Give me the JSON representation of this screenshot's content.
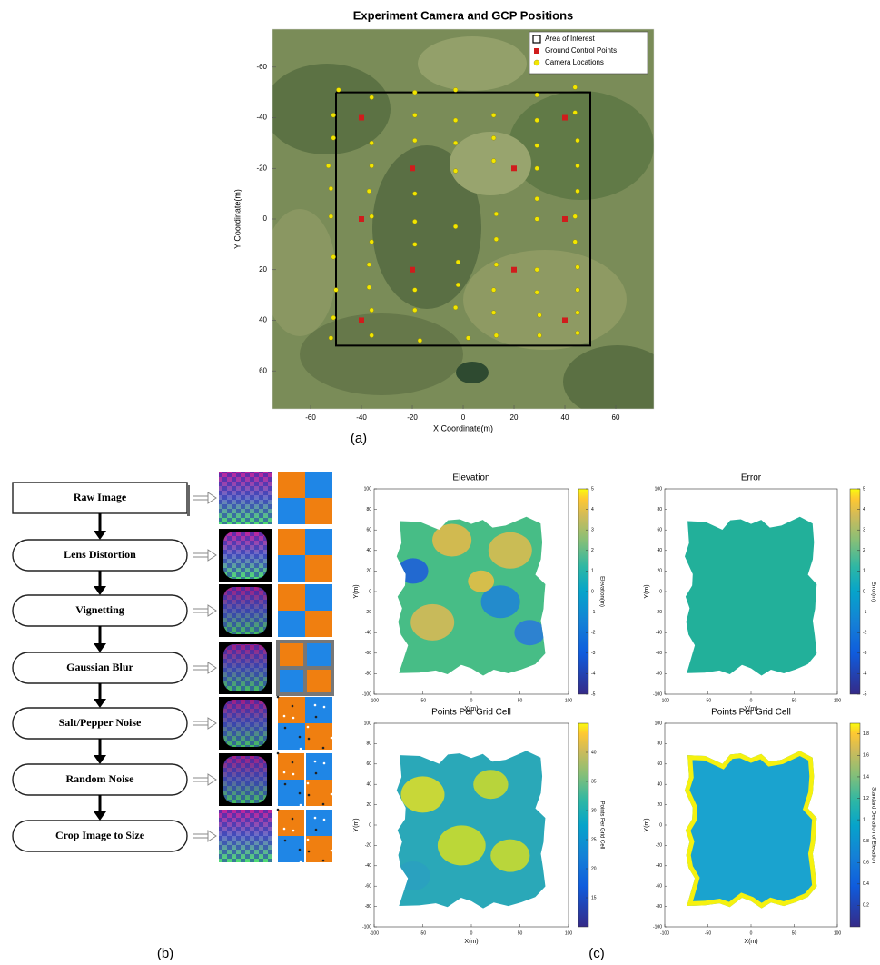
{
  "chart_data": [
    {
      "type": "scatter",
      "title": "Experiment Camera and GCP Positions",
      "xlabel": "X Coordinate(m)",
      "ylabel": "Y Coordinate(m)",
      "xlim": [
        -75,
        75
      ],
      "ylim": [
        -75,
        75
      ],
      "y_reversed": true,
      "xticks": [
        -60,
        -40,
        -20,
        0,
        20,
        40,
        60
      ],
      "yticks": [
        -60,
        -40,
        -20,
        0,
        20,
        40,
        60
      ],
      "legend": "upper right",
      "series": [
        {
          "name": "Area of Interest",
          "color": "#000000",
          "marker": "line",
          "x": [
            -50,
            50,
            50,
            -50,
            -50
          ],
          "y": [
            -50,
            -50,
            50,
            50,
            -50
          ]
        },
        {
          "name": "Ground Control Points",
          "color": "#d01c1c",
          "marker": "square",
          "x": [
            -40,
            40,
            -20,
            20,
            -40,
            40,
            -20,
            20,
            -40,
            40
          ],
          "y": [
            -40,
            -40,
            -20,
            -20,
            0,
            0,
            20,
            20,
            40,
            40
          ]
        },
        {
          "name": "Camera Locations",
          "color": "#f2e600",
          "marker": "circle",
          "x": [
            -49,
            -51,
            -51,
            -53,
            -52,
            -52,
            -51,
            -50,
            -51,
            -52,
            -36,
            -36,
            -36,
            -37,
            -36,
            -36,
            -37,
            -37,
            -36,
            -36,
            -19,
            -19,
            -19,
            -19,
            -19,
            -19,
            -19,
            -19,
            -17,
            -3,
            -3,
            -3,
            -3,
            -3,
            -2,
            -2,
            -3,
            2,
            12,
            12,
            12,
            13,
            13,
            13,
            12,
            12,
            13,
            29,
            29,
            29,
            29,
            29,
            29,
            29,
            29,
            30,
            30,
            44,
            44,
            45,
            45,
            45,
            44,
            44,
            45,
            45,
            45,
            45
          ],
          "y": [
            -51,
            -41,
            -32,
            -21,
            -12,
            -1,
            15,
            28,
            39,
            47,
            -48,
            -30,
            -21,
            -11,
            -1,
            9,
            18,
            27,
            36,
            46,
            -50,
            -41,
            -31,
            -10,
            1,
            10,
            28,
            36,
            48,
            -51,
            -39,
            -30,
            -19,
            3,
            17,
            26,
            35,
            47,
            -41,
            -32,
            -23,
            -2,
            8,
            18,
            28,
            37,
            46,
            -49,
            -39,
            -29,
            -20,
            -8,
            0,
            20,
            29,
            38,
            46,
            -52,
            -42,
            -31,
            -21,
            -11,
            -1,
            9,
            19,
            28,
            37,
            45
          ]
        }
      ]
    },
    {
      "type": "heatmap",
      "title": "Elevation",
      "xlabel": "X(m)",
      "ylabel": "Y(m)",
      "colorbar_label": "Elevation(m)",
      "xlim": [
        -100,
        100
      ],
      "ylim": [
        -100,
        100
      ],
      "xticks": [
        -100,
        -50,
        0,
        50,
        100
      ],
      "yticks": [
        -100,
        -80,
        -60,
        -40,
        -20,
        0,
        20,
        40,
        60,
        80,
        100
      ],
      "clim": [
        -5,
        5
      ],
      "cticks": [
        -5,
        -4,
        -3,
        -2,
        -1,
        0,
        1,
        2,
        3,
        4,
        5
      ]
    },
    {
      "type": "heatmap",
      "title": "Error",
      "xlabel": "X(m)",
      "ylabel": "Y(m)",
      "colorbar_label": "Error(m)",
      "xlim": [
        -100,
        100
      ],
      "ylim": [
        -100,
        100
      ],
      "xticks": [
        -100,
        -50,
        0,
        50,
        100
      ],
      "yticks": [
        -100,
        -80,
        -60,
        -40,
        -20,
        0,
        20,
        40,
        60,
        80,
        100
      ],
      "clim": [
        -5,
        5
      ],
      "cticks": [
        -5,
        -4,
        -3,
        -2,
        -1,
        0,
        1,
        2,
        3,
        4,
        5
      ]
    },
    {
      "type": "heatmap",
      "title": "Points Per Grid Cell",
      "xlabel": "X(m)",
      "ylabel": "Y(m)",
      "colorbar_label": "Points Per Grid Cell",
      "xlim": [
        -100,
        100
      ],
      "ylim": [
        -100,
        100
      ],
      "xticks": [
        -100,
        -50,
        0,
        50,
        100
      ],
      "yticks": [
        -100,
        -80,
        -60,
        -40,
        -20,
        0,
        20,
        40,
        60,
        80,
        100
      ],
      "clim": [
        10,
        45
      ],
      "cticks": [
        15,
        20,
        25,
        30,
        35,
        40
      ]
    },
    {
      "type": "heatmap",
      "title": "Points Per Grid Cell",
      "xlabel": "X(m)",
      "ylabel": "Y(m)",
      "colorbar_label": "Standard Deviation of Elevation",
      "xlim": [
        -100,
        100
      ],
      "ylim": [
        -100,
        100
      ],
      "xticks": [
        -100,
        -50,
        0,
        50,
        100
      ],
      "yticks": [
        -100,
        -80,
        -60,
        -40,
        -20,
        0,
        20,
        40,
        60,
        80,
        100
      ],
      "clim": [
        0,
        1.9
      ],
      "cticks": [
        0.2,
        0.4,
        0.6,
        0.8,
        1,
        1.2,
        1.4,
        1.6,
        1.8
      ]
    }
  ],
  "diagram": {
    "nodes": [
      "Raw Image",
      "Lens Distortion",
      "Vignetting",
      "Gaussian Blur",
      "Salt/Pepper Noise",
      "Random Noise",
      "Crop Image to Size"
    ]
  },
  "captions": [
    "(a)",
    "(b)",
    "(c)"
  ]
}
